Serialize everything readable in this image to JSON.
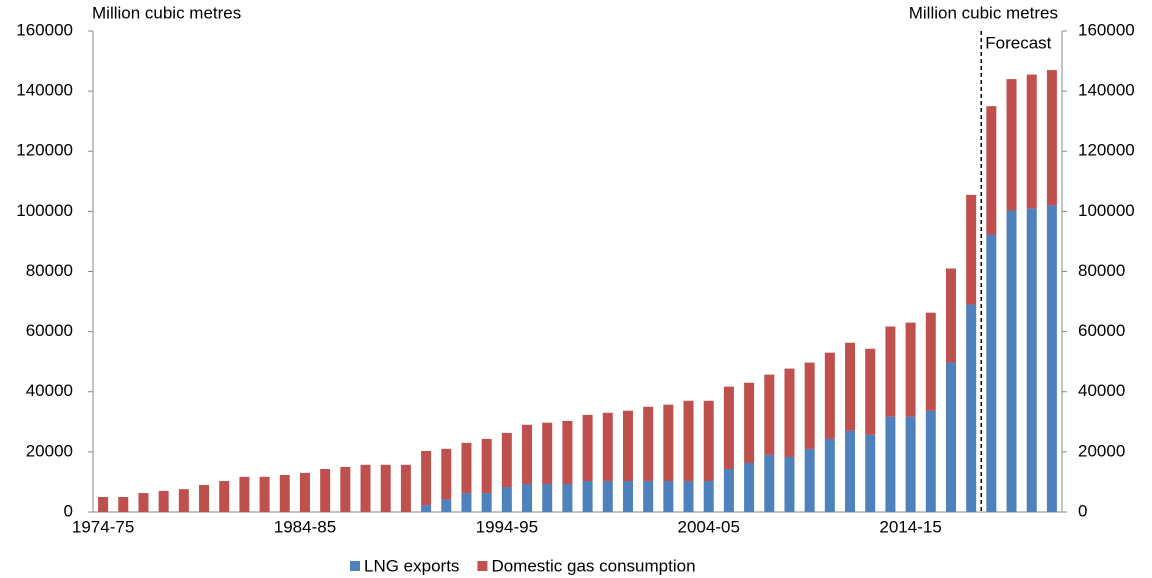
{
  "chart_data": {
    "type": "stacked_bar",
    "y_label": "Million  cubic metres",
    "y2_label": "Million  cubic metres",
    "annotation": "Forecast",
    "categories": [
      "1974-75",
      null,
      null,
      null,
      null,
      null,
      null,
      null,
      null,
      null,
      "1984-85",
      null,
      null,
      null,
      null,
      null,
      null,
      null,
      null,
      null,
      "1994-95",
      null,
      null,
      null,
      null,
      null,
      null,
      null,
      null,
      null,
      "2004-05",
      null,
      null,
      null,
      null,
      null,
      null,
      null,
      null,
      null,
      "2014-15",
      null,
      null,
      null,
      null,
      null,
      null,
      null
    ],
    "series": [
      {
        "name": "LNG exports",
        "color": "#4f81bd",
        "values": [
          0,
          0,
          0,
          0,
          0,
          0,
          0,
          0,
          0,
          0,
          0,
          0,
          0,
          0,
          0,
          0,
          2300,
          4300,
          6300,
          6300,
          8300,
          9300,
          9300,
          9300,
          10300,
          10300,
          10300,
          10300,
          10300,
          10300,
          10300,
          14300,
          16300,
          19000,
          18300,
          21000,
          24300,
          27000,
          25700,
          31700,
          31700,
          33700,
          49700,
          69000,
          92300,
          100300,
          101000,
          102000
        ]
      },
      {
        "name": "Domestic gas consumption",
        "color": "#c0504d",
        "values": [
          5000,
          5000,
          6300,
          7000,
          7600,
          9000,
          10300,
          11700,
          11700,
          12300,
          13000,
          14300,
          15000,
          15700,
          15700,
          15700,
          18000,
          16700,
          16700,
          18000,
          18000,
          19700,
          20400,
          21000,
          22000,
          22700,
          23400,
          24700,
          25400,
          26700,
          26700,
          27400,
          26700,
          26700,
          29400,
          28700,
          28700,
          29300,
          28600,
          30000,
          31300,
          32600,
          31300,
          36500,
          42700,
          43700,
          44500,
          45000
        ]
      }
    ],
    "ylim": [
      0,
      160000
    ],
    "yticks": [
      0,
      20000,
      40000,
      60000,
      80000,
      100000,
      120000,
      140000,
      160000
    ],
    "y2lim": [
      0,
      160000
    ],
    "y2ticks": [
      0,
      20000,
      40000,
      60000,
      80000,
      100000,
      120000,
      140000,
      160000
    ],
    "grid": false,
    "legend": "bottom"
  }
}
